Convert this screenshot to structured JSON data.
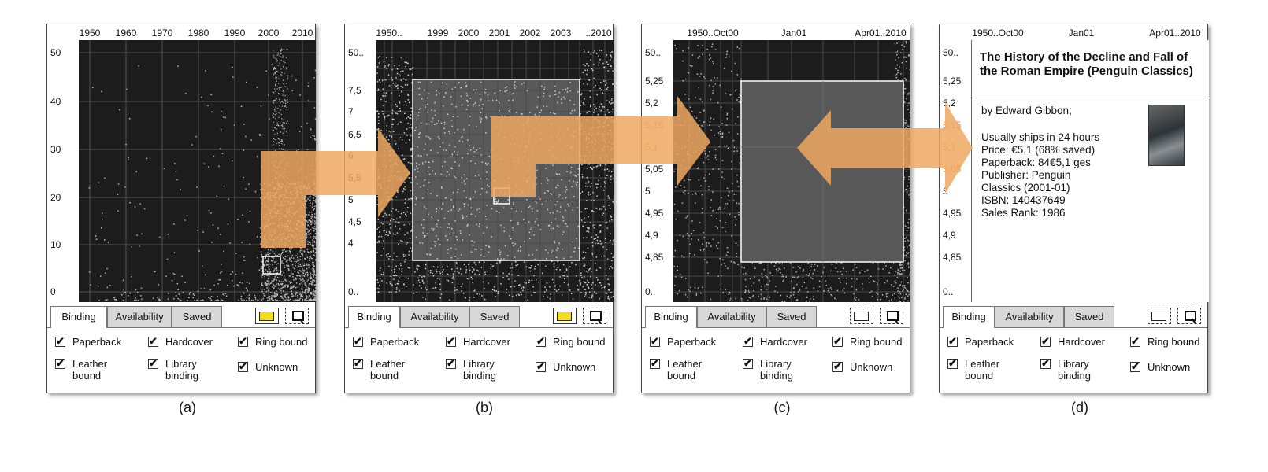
{
  "panels": [
    {
      "id": "a",
      "caption": "(a)",
      "x_ticks": [
        "1950",
        "1960",
        "1970",
        "1980",
        "1990",
        "2000",
        "2010"
      ],
      "y_ticks": [
        "50",
        "40",
        "30",
        "20",
        "10",
        "0"
      ],
      "tabs": [
        "Binding",
        "Availability",
        "Saved"
      ],
      "active_tab": "Binding",
      "selection_tool": "selected",
      "checkboxes": [
        "Paperback",
        "Hardcover",
        "Ring bound",
        "Leather bound",
        "Library binding",
        "Unknown"
      ]
    },
    {
      "id": "b",
      "caption": "(b)",
      "x_ticks": [
        "1950..",
        "1999",
        "2000",
        "2001",
        "2002",
        "2003",
        "..2010"
      ],
      "y_ticks": [
        "50..",
        "7,5",
        "7",
        "6,5",
        "6",
        "5,5",
        "5",
        "4,5",
        "4",
        "0.."
      ],
      "tabs": [
        "Binding",
        "Availability",
        "Saved"
      ],
      "active_tab": "Binding",
      "selection_tool": "selected",
      "checkboxes": [
        "Paperback",
        "Hardcover",
        "Ring bound",
        "Leather bound",
        "Library binding",
        "Unknown"
      ]
    },
    {
      "id": "c",
      "caption": "(c)",
      "x_ticks": [
        "1950..Oct00",
        "Jan01",
        "Apr01..2010"
      ],
      "y_ticks": [
        "50..",
        "5,25",
        "5,2",
        "5,15",
        "5,1",
        "5,05",
        "5",
        "4,95",
        "4,9",
        "4,85",
        "0.."
      ],
      "tabs": [
        "Binding",
        "Availability",
        "Saved"
      ],
      "active_tab": "Binding",
      "selection_tool": "unselected",
      "checkboxes": [
        "Paperback",
        "Hardcover",
        "Ring bound",
        "Leather bound",
        "Library binding",
        "Unknown"
      ]
    },
    {
      "id": "d",
      "caption": "(d)",
      "x_ticks": [
        "1950..Oct00",
        "Jan01",
        "Apr01..2010"
      ],
      "y_ticks": [
        "50..",
        "5,25",
        "5,2",
        "5,15",
        "5,1",
        "5,05",
        "5",
        "4,95",
        "4,9",
        "4,85",
        "0.."
      ],
      "tabs": [
        "Binding",
        "Availability",
        "Saved"
      ],
      "active_tab": "Binding",
      "selection_tool": "unselected",
      "checkboxes": [
        "Paperback",
        "Hardcover",
        "Ring bound",
        "Leather bound",
        "Library binding",
        "Unknown"
      ]
    }
  ],
  "book": {
    "title": "The History of the Decline and Fall of the Roman Empire (Penguin Classics)",
    "author": "by Edward  Gibbon;",
    "details": [
      "Usually ships in 24 hours",
      "Price: €5,1 (68% saved)",
      "Paperback: 84€5,1 ges",
      "Publisher: Penguin",
      "Classics (2001-01)",
      "ISBN: 140437649",
      "Sales Rank: 1986"
    ],
    "cover_icon": "book-cover-image"
  },
  "colors": {
    "plot_bg": "#1c1c1c",
    "arrow": "#f0a862",
    "selection_fill": "#f2dc1e",
    "selection_box": "#ffffff"
  }
}
